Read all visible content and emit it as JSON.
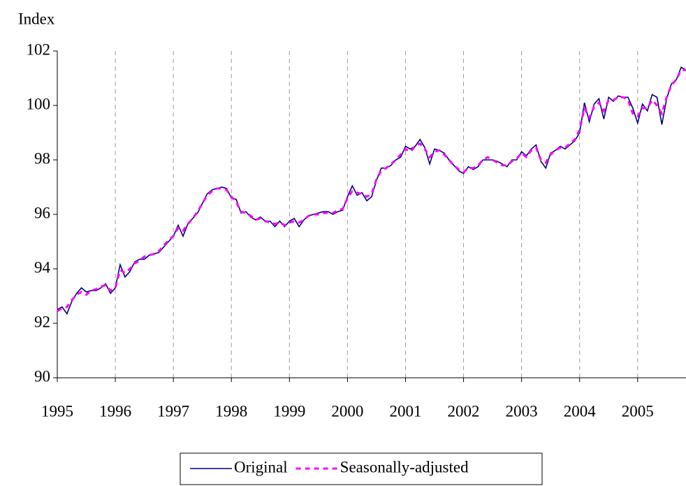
{
  "chart_data": {
    "type": "line",
    "y_label": "Index",
    "x": [
      1995,
      1995.083,
      1995.167,
      1995.25,
      1995.333,
      1995.417,
      1995.5,
      1995.583,
      1995.667,
      1995.75,
      1995.833,
      1995.917,
      1996,
      1996.083,
      1996.167,
      1996.25,
      1996.333,
      1996.417,
      1996.5,
      1996.583,
      1996.667,
      1996.75,
      1996.833,
      1996.917,
      1997,
      1997.083,
      1997.167,
      1997.25,
      1997.333,
      1997.417,
      1997.5,
      1997.583,
      1997.667,
      1997.75,
      1997.833,
      1997.917,
      1998,
      1998.083,
      1998.167,
      1998.25,
      1998.333,
      1998.417,
      1998.5,
      1998.583,
      1998.667,
      1998.75,
      1998.833,
      1998.917,
      1999,
      1999.083,
      1999.167,
      1999.25,
      1999.333,
      1999.417,
      1999.5,
      1999.583,
      1999.667,
      1999.75,
      1999.833,
      1999.917,
      2000,
      2000.083,
      2000.167,
      2000.25,
      2000.333,
      2000.417,
      2000.5,
      2000.583,
      2000.667,
      2000.75,
      2000.833,
      2000.917,
      2001,
      2001.083,
      2001.167,
      2001.25,
      2001.333,
      2001.417,
      2001.5,
      2001.583,
      2001.667,
      2001.75,
      2001.833,
      2001.917,
      2002,
      2002.083,
      2002.167,
      2002.25,
      2002.333,
      2002.417,
      2002.5,
      2002.583,
      2002.667,
      2002.75,
      2002.833,
      2002.917,
      2003,
      2003.083,
      2003.167,
      2003.25,
      2003.333,
      2003.417,
      2003.5,
      2003.583,
      2003.667,
      2003.75,
      2003.833,
      2003.917,
      2004,
      2004.083,
      2004.167,
      2004.25,
      2004.333,
      2004.417,
      2004.5,
      2004.583,
      2004.667,
      2004.75,
      2004.833,
      2004.917,
      2005,
      2005.083,
      2005.167,
      2005.25,
      2005.333,
      2005.417,
      2005.5,
      2005.583,
      2005.667,
      2005.75,
      2005.833
    ],
    "series": [
      {
        "name": "Original",
        "color": "#000080",
        "line_style": "solid",
        "values": [
          92.5,
          92.6,
          92.35,
          92.8,
          93.1,
          93.3,
          93.15,
          93.2,
          93.2,
          93.3,
          93.45,
          93.1,
          93.3,
          94.15,
          93.7,
          93.9,
          94.25,
          94.35,
          94.35,
          94.5,
          94.55,
          94.6,
          94.8,
          95.0,
          95.2,
          95.6,
          95.2,
          95.65,
          95.85,
          96.05,
          96.4,
          96.75,
          96.9,
          96.95,
          97.0,
          96.95,
          96.6,
          96.55,
          96.05,
          96.1,
          95.9,
          95.8,
          95.9,
          95.75,
          95.75,
          95.55,
          95.75,
          95.55,
          95.75,
          95.85,
          95.55,
          95.8,
          95.95,
          96.0,
          96.05,
          96.1,
          96.1,
          96.0,
          96.1,
          96.15,
          96.65,
          97.05,
          96.7,
          96.8,
          96.5,
          96.65,
          97.25,
          97.7,
          97.7,
          97.8,
          98.0,
          98.1,
          98.5,
          98.4,
          98.5,
          98.75,
          98.45,
          97.85,
          98.4,
          98.35,
          98.25,
          98.0,
          97.8,
          97.6,
          97.5,
          97.75,
          97.65,
          97.75,
          98.0,
          98.0,
          98.0,
          97.95,
          97.85,
          97.75,
          98.0,
          98.0,
          98.3,
          98.15,
          98.4,
          98.55,
          97.95,
          97.7,
          98.25,
          98.35,
          98.5,
          98.4,
          98.55,
          98.7,
          99.0,
          100.1,
          99.4,
          100.05,
          100.25,
          99.5,
          100.3,
          100.15,
          100.35,
          100.3,
          100.3,
          99.9,
          99.35,
          100.05,
          99.8,
          100.4,
          100.3,
          99.3,
          100.25,
          100.8,
          100.95,
          101.4,
          101.3
        ]
      },
      {
        "name": "Seasonally-adjusted",
        "color": "#ff00ff",
        "line_style": "dashed",
        "values": [
          92.45,
          92.55,
          92.6,
          92.85,
          93.05,
          93.15,
          93.05,
          93.2,
          93.25,
          93.35,
          93.4,
          93.2,
          93.3,
          93.95,
          93.85,
          94.0,
          94.2,
          94.3,
          94.45,
          94.5,
          94.55,
          94.65,
          94.85,
          95.05,
          95.2,
          95.5,
          95.4,
          95.65,
          95.85,
          96.1,
          96.4,
          96.7,
          96.85,
          96.95,
          96.95,
          96.9,
          96.65,
          96.45,
          96.1,
          96.05,
          95.95,
          95.8,
          95.85,
          95.75,
          95.7,
          95.65,
          95.7,
          95.6,
          95.7,
          95.75,
          95.7,
          95.8,
          95.95,
          96.0,
          96.0,
          96.05,
          96.05,
          96.05,
          96.15,
          96.2,
          96.6,
          96.85,
          96.8,
          96.75,
          96.65,
          96.75,
          97.3,
          97.6,
          97.7,
          97.85,
          98.0,
          98.2,
          98.4,
          98.3,
          98.5,
          98.6,
          98.4,
          98.1,
          98.3,
          98.35,
          98.2,
          98.0,
          97.8,
          97.65,
          97.55,
          97.7,
          97.7,
          97.8,
          98.0,
          98.1,
          98.0,
          97.9,
          97.8,
          97.8,
          97.95,
          98.05,
          98.25,
          98.1,
          98.35,
          98.45,
          98.0,
          97.9,
          98.2,
          98.35,
          98.45,
          98.45,
          98.6,
          98.75,
          99.1,
          99.9,
          99.55,
          99.95,
          100.1,
          99.8,
          100.2,
          100.2,
          100.3,
          100.3,
          100.2,
          99.7,
          99.6,
          99.9,
          99.9,
          100.2,
          100.0,
          99.7,
          100.3,
          100.75,
          100.95,
          101.3,
          101.3
        ]
      }
    ],
    "xlim": [
      1995,
      2005.833
    ],
    "xticks": [
      1995,
      1996,
      1997,
      1998,
      1999,
      2000,
      2001,
      2002,
      2003,
      2004,
      2005
    ],
    "ylim": [
      90,
      102
    ],
    "yticks": [
      90,
      92,
      94,
      96,
      98,
      100,
      102
    ],
    "grid": "x",
    "legend": "bottom"
  }
}
